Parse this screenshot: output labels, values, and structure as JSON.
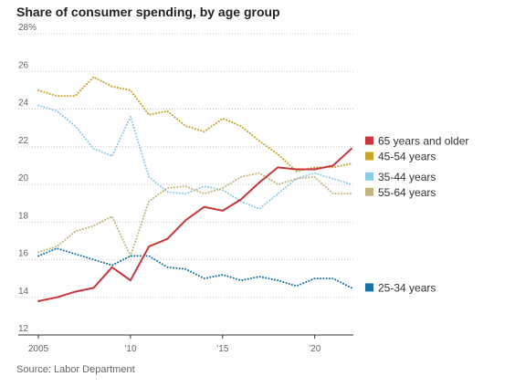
{
  "title": "Share of consumer spending, by age group",
  "source": "Source: Labor Department",
  "chart_data": {
    "type": "line",
    "title": "Share of consumer spending, by age group",
    "xlabel": "",
    "ylabel": "",
    "x": [
      2005,
      2006,
      2007,
      2008,
      2009,
      2010,
      2011,
      2012,
      2013,
      2014,
      2015,
      2016,
      2017,
      2018,
      2019,
      2020,
      2021,
      2022
    ],
    "xlim": [
      2005,
      2022
    ],
    "ylim": [
      12,
      28
    ],
    "x_ticks": [
      2005,
      2010,
      2015,
      2020
    ],
    "x_tick_labels": [
      "2005",
      "’10",
      "’15",
      "’20"
    ],
    "y_ticks": [
      12,
      14,
      16,
      18,
      20,
      22,
      24,
      26,
      28
    ],
    "y_tick_labels": [
      "12",
      "14",
      "16",
      "18",
      "20",
      "22",
      "24",
      "26",
      "28%"
    ],
    "grid": "horizontal dotted",
    "legend": "right, at line ends",
    "series": [
      {
        "name": "65 years and older",
        "color": "#c8363b",
        "style": "solid",
        "values": [
          13.8,
          14.0,
          14.3,
          14.5,
          15.6,
          14.9,
          16.7,
          17.1,
          18.1,
          18.8,
          18.6,
          19.2,
          20.1,
          20.9,
          20.8,
          20.8,
          21.0,
          21.9
        ]
      },
      {
        "name": "45-54 years",
        "color": "#c9a227",
        "style": "dotted",
        "values": [
          25.0,
          24.7,
          24.7,
          25.7,
          25.2,
          25.0,
          23.7,
          23.9,
          23.1,
          22.8,
          23.5,
          23.1,
          22.3,
          21.6,
          20.7,
          20.9,
          20.9,
          21.1
        ]
      },
      {
        "name": "35-44 years",
        "color": "#8ccbe8",
        "style": "dotted",
        "values": [
          24.2,
          23.9,
          23.1,
          21.9,
          21.5,
          23.6,
          20.4,
          19.6,
          19.5,
          19.9,
          19.7,
          19.1,
          18.7,
          19.5,
          20.3,
          20.6,
          20.3,
          20.0
        ]
      },
      {
        "name": "55-64 years",
        "color": "#c2b47c",
        "style": "dotted",
        "values": [
          16.4,
          16.7,
          17.5,
          17.8,
          18.3,
          16.2,
          19.1,
          19.8,
          19.9,
          19.5,
          19.8,
          20.4,
          20.6,
          20.0,
          20.3,
          20.4,
          19.5,
          19.5
        ]
      },
      {
        "name": "25-34 years",
        "color": "#1a73a7",
        "style": "dotted",
        "values": [
          16.2,
          16.6,
          16.3,
          16.0,
          15.7,
          16.2,
          16.2,
          15.6,
          15.5,
          15.0,
          15.2,
          14.9,
          15.1,
          14.9,
          14.6,
          15.0,
          15.0,
          14.5
        ]
      }
    ]
  }
}
